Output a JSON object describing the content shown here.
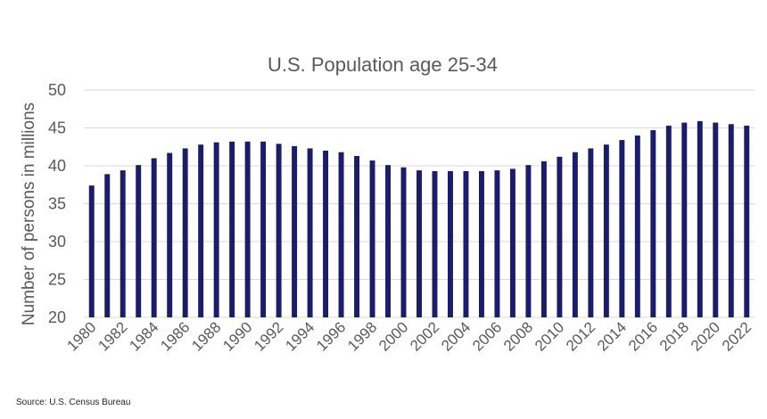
{
  "chart_data": {
    "type": "bar",
    "title": "U.S. Population age 25-34",
    "xlabel": "",
    "ylabel": "Number of persons in millions",
    "ylim": [
      20,
      50
    ],
    "yticks": [
      20,
      25,
      30,
      35,
      40,
      45,
      50
    ],
    "grid": true,
    "legend": "none",
    "bar_color": "#1b1c6b",
    "categories": [
      "1980",
      "1981",
      "1982",
      "1983",
      "1984",
      "1985",
      "1986",
      "1987",
      "1988",
      "1989",
      "1990",
      "1991",
      "1992",
      "1993",
      "1994",
      "1995",
      "1996",
      "1997",
      "1998",
      "1999",
      "2000",
      "2001",
      "2002",
      "2003",
      "2004",
      "2005",
      "2006",
      "2007",
      "2008",
      "2009",
      "2010",
      "2011",
      "2012",
      "2013",
      "2014",
      "2015",
      "2016",
      "2017",
      "2018",
      "2019",
      "2020",
      "2021",
      "2022"
    ],
    "xtick_labels": [
      "1980",
      "1982",
      "1984",
      "1986",
      "1988",
      "1990",
      "1992",
      "1994",
      "1996",
      "1998",
      "2000",
      "2002",
      "2004",
      "2006",
      "2008",
      "2010",
      "2012",
      "2014",
      "2016",
      "2018",
      "2020",
      "2022"
    ],
    "values": [
      37.4,
      38.9,
      39.4,
      40.1,
      41.0,
      41.7,
      42.3,
      42.8,
      43.1,
      43.2,
      43.2,
      43.2,
      42.9,
      42.6,
      42.3,
      42.0,
      41.8,
      41.3,
      40.7,
      40.1,
      39.8,
      39.4,
      39.3,
      39.3,
      39.3,
      39.3,
      39.4,
      39.6,
      40.1,
      40.6,
      41.2,
      41.8,
      42.3,
      42.8,
      43.4,
      44.0,
      44.7,
      45.3,
      45.7,
      45.9,
      45.7,
      45.5,
      45.3
    ],
    "source": "Source: U.S. Census Bureau"
  }
}
